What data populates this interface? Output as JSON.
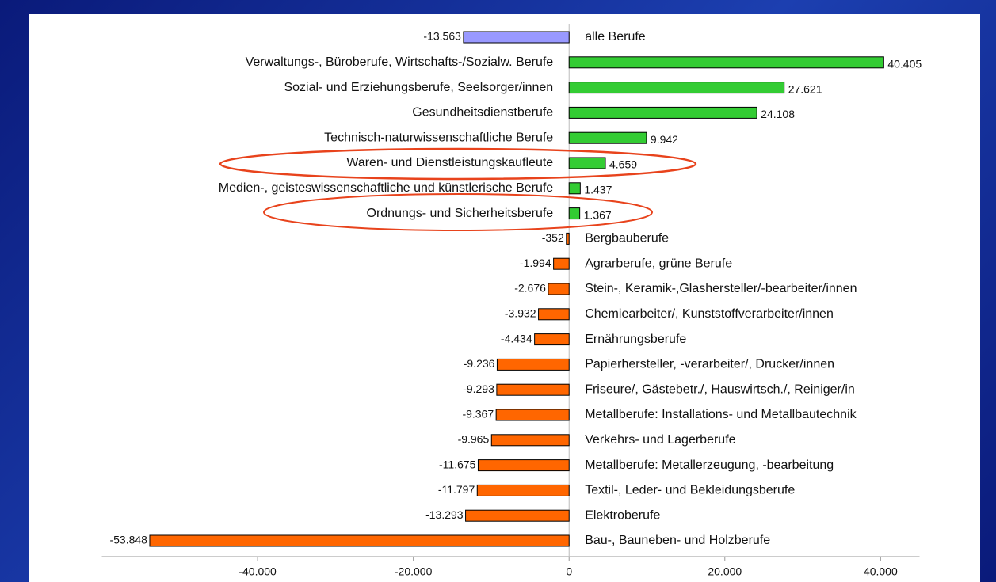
{
  "chart_data": {
    "type": "hbar",
    "categories": [
      "alle Berufe",
      "Verwaltungs-, Büroberufe, Wirtschafts-/Sozialw. Berufe",
      "Sozial- und Erziehungsberufe, Seelsorger/innen",
      "Gesundheitsdienstberufe",
      "Technisch-naturwissenschaftliche Berufe",
      "Waren- und Dienstleistungskaufleute",
      "Medien-, geisteswissenschaftliche und künstlerische Berufe",
      "Ordnungs- und Sicherheitsberufe",
      "Bergbauberufe",
      "Agrarberufe, grüne Berufe",
      "Stein-, Keramik-,Glashersteller/-bearbeiter/innen",
      "Chemiearbeiter/, Kunststoffverarbeiter/innen",
      "Ernährungsberufe",
      "Papierhersteller, -verarbeiter/, Drucker/innen",
      "Friseure/, Gästebetr./, Hauswirtsch./, Reiniger/in",
      "Metallberufe: Installations- und Metallbautechnik",
      "Verkehrs- und Lagerberufe",
      "Metallberufe: Metallerzeugung, -bearbeitung",
      "Textil-, Leder- und Bekleidungsberufe",
      "Elektroberufe",
      "Bau-, Bauneben- und Holzberufe"
    ],
    "values": [
      -13563,
      40405,
      27621,
      24108,
      9942,
      4659,
      1437,
      1367,
      -352,
      -1994,
      -2676,
      -3932,
      -4434,
      -9236,
      -9293,
      -9367,
      -9965,
      -11675,
      -11797,
      -13293,
      -53848
    ],
    "value_labels": [
      "-13.563",
      "40.405",
      "27.621",
      "24.108",
      "9.942",
      "4.659",
      "1.437",
      "1.367",
      "-352",
      "-1.994",
      "-2.676",
      "-3.932",
      "-4.434",
      "-9.236",
      "-9.293",
      "-9.367",
      "-9.965",
      "-11.675",
      "-11.797",
      "-13.293",
      "-53.848"
    ],
    "colors": [
      "#9999ff",
      "#33cc33",
      "#33cc33",
      "#33cc33",
      "#33cc33",
      "#33cc33",
      "#33cc33",
      "#33cc33",
      "#ff6600",
      "#ff6600",
      "#ff6600",
      "#ff6600",
      "#ff6600",
      "#ff6600",
      "#ff6600",
      "#ff6600",
      "#ff6600",
      "#ff6600",
      "#ff6600",
      "#ff6600",
      "#ff6600"
    ],
    "xlim": [
      -60000,
      45000
    ],
    "xticks": [
      {
        "value": -40000,
        "label": "-40.000"
      },
      {
        "value": -20000,
        "label": "-20.000"
      },
      0,
      {
        "value": 20000,
        "label": "20.000"
      },
      {
        "value": 40000,
        "label": "40.000"
      }
    ]
  }
}
